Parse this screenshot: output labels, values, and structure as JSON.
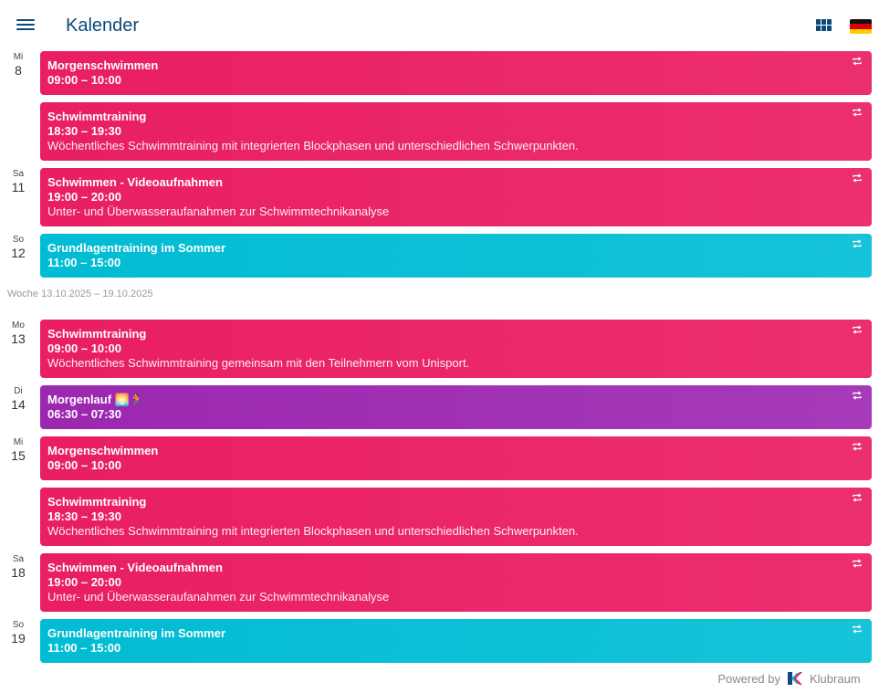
{
  "header": {
    "title": "Kalender",
    "menu_icon": "menu-icon",
    "view_icon": "grid-view-icon",
    "language_icon": "german-flag-icon"
  },
  "weeks": [
    {
      "label": "",
      "rows": [
        {
          "weekday": "Mi",
          "day": "8",
          "event": {
            "name": "Morgenschwimmen",
            "time": "09:00 – 10:00",
            "desc": "",
            "color": "pink"
          }
        },
        {
          "weekday": "",
          "day": "",
          "event": {
            "name": "Schwimmtraining",
            "time": "18:30 – 19:30",
            "desc": "Wöchentliches Schwimmtraining mit integrierten Blockphasen und unterschiedlichen Schwerpunkten.",
            "color": "pink"
          }
        },
        {
          "weekday": "Sa",
          "day": "11",
          "event": {
            "name": "Schwimmen - Videoaufnahmen",
            "time": "19:00 – 20:00",
            "desc": "Unter- und Überwasseraufanahmen zur Schwimmtechnikanalyse",
            "color": "pink"
          }
        },
        {
          "weekday": "So",
          "day": "12",
          "event": {
            "name": "Grundlagentraining im Sommer",
            "time": "11:00 – 15:00",
            "desc": "",
            "color": "cyan"
          }
        }
      ]
    },
    {
      "label": "Woche 13.10.2025 – 19.10.2025",
      "rows": [
        {
          "weekday": "Mo",
          "day": "13",
          "event": {
            "name": "Schwimmtraining",
            "time": "09:00 – 10:00",
            "desc": "Wöchentliches Schwimmtraining gemeinsam mit den Teilnehmern vom Unisport.",
            "color": "pink"
          }
        },
        {
          "weekday": "Di",
          "day": "14",
          "event": {
            "name": "Morgenlauf 🌅🏃",
            "time": "06:30 – 07:30",
            "desc": "",
            "color": "purple"
          }
        },
        {
          "weekday": "Mi",
          "day": "15",
          "event": {
            "name": "Morgenschwimmen",
            "time": "09:00 – 10:00",
            "desc": "",
            "color": "pink"
          }
        },
        {
          "weekday": "",
          "day": "",
          "event": {
            "name": "Schwimmtraining",
            "time": "18:30 – 19:30",
            "desc": "Wöchentliches Schwimmtraining mit integrierten Blockphasen und unterschiedlichen Schwerpunkten.",
            "color": "pink"
          }
        },
        {
          "weekday": "Sa",
          "day": "18",
          "event": {
            "name": "Schwimmen - Videoaufnahmen",
            "time": "19:00 – 20:00",
            "desc": "Unter- und Überwasseraufanahmen zur Schwimmtechnikanalyse",
            "color": "pink"
          }
        },
        {
          "weekday": "So",
          "day": "19",
          "event": {
            "name": "Grundlagentraining im Sommer",
            "time": "11:00 – 15:00",
            "desc": "",
            "color": "cyan"
          }
        }
      ]
    }
  ],
  "footer": {
    "powered_by": "Powered by",
    "brand": "Klubraum",
    "logo_icon": "klubraum-logo-icon"
  },
  "colors": {
    "primary": "#0d4a7a",
    "pink": "#e91e63",
    "cyan": "#00bcd4",
    "purple": "#9c27b0"
  }
}
